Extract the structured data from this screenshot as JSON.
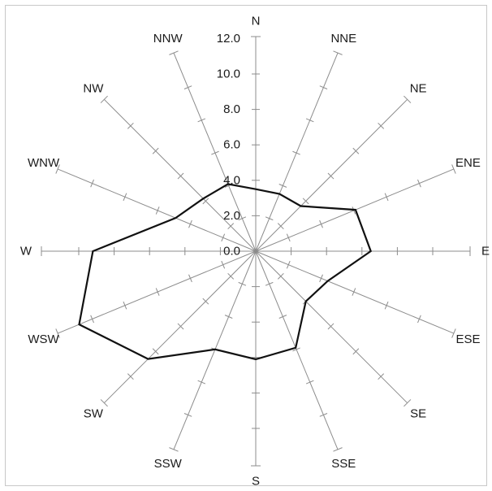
{
  "chart_data": {
    "type": "radar",
    "directions": [
      "N",
      "NNE",
      "NE",
      "ENE",
      "E",
      "ESE",
      "SE",
      "SSE",
      "S",
      "SSW",
      "SW",
      "WSW",
      "W",
      "WNW",
      "NW",
      "NNW"
    ],
    "values": [
      3.5,
      3.5,
      3.6,
      6.1,
      6.5,
      4.4,
      4.0,
      5.9,
      6.1,
      6.0,
      8.6,
      10.8,
      9.2,
      4.9,
      4.2,
      4.1
    ],
    "rlim": [
      0,
      12
    ],
    "tick_labels": [
      "0.0",
      "2.0",
      "4.0",
      "6.0",
      "8.0",
      "10.0",
      "12.0"
    ],
    "grid": false,
    "colors": {
      "axis": "#8c8c8c",
      "series": "#111111",
      "text": "#1a1a1a"
    }
  }
}
